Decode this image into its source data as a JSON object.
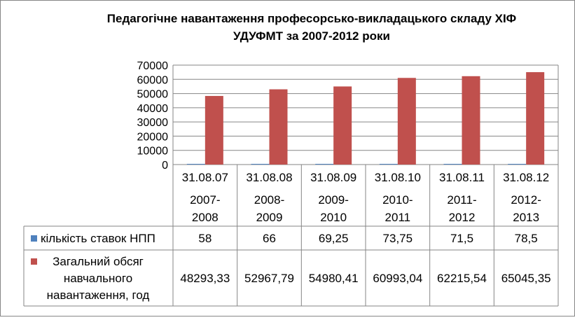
{
  "chart_data": {
    "type": "bar",
    "title_line1": "Педагогічне навантаження професорсько-викладацького складу ХІФ",
    "title_line2": "УДУФМТ за 2007-2012 роки",
    "categories": [
      {
        "date": "31.08.07",
        "year_a": "2007-",
        "year_b": "2008"
      },
      {
        "date": "31.08.08",
        "year_a": "2008-",
        "year_b": "2009"
      },
      {
        "date": "31.08.09",
        "year_a": "2009-",
        "year_b": "2010"
      },
      {
        "date": "31.08.10",
        "year_a": "2010-",
        "year_b": "2011"
      },
      {
        "date": "31.08.11",
        "year_a": "2011-",
        "year_b": "2012"
      },
      {
        "date": "31.08.12",
        "year_a": "2012-",
        "year_b": "2013"
      }
    ],
    "series": [
      {
        "name": "кількість ставок НПП",
        "name_lines": [
          "кількість ставок НПП"
        ],
        "color": "#4F81BD",
        "values": [
          58,
          66,
          69.25,
          73.75,
          71.5,
          78.5
        ],
        "value_labels": [
          "58",
          "66",
          "69,25",
          "73,75",
          "71,5",
          "78,5"
        ]
      },
      {
        "name": "Загальний обсяг навчального навантаження, год",
        "name_lines": [
          "Загальний обсяг",
          "навчального",
          "навантаження, год"
        ],
        "color": "#C0504D",
        "values": [
          48293.33,
          52967.79,
          54980.41,
          60993.04,
          62215.54,
          65045.35
        ],
        "value_labels": [
          "48293,33",
          "52967,79",
          "54980,41",
          "60993,04",
          "62215,54",
          "65045,35"
        ]
      }
    ],
    "ylim": [
      0,
      70000
    ],
    "yticks": [
      0,
      10000,
      20000,
      30000,
      40000,
      50000,
      60000,
      70000
    ],
    "grid": true,
    "legend": "data-table"
  }
}
